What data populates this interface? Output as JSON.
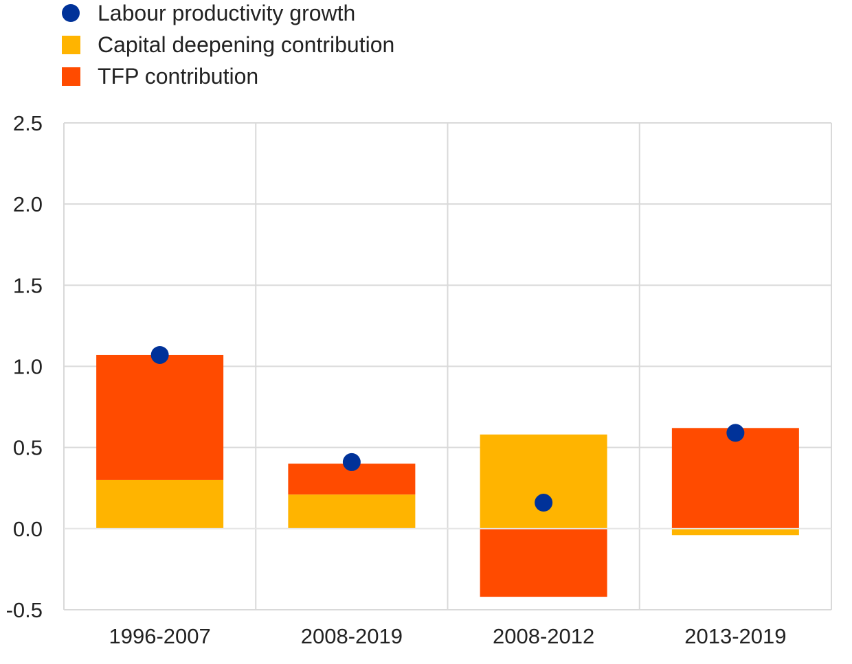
{
  "chart_data": {
    "type": "bar",
    "stacked": true,
    "title": "",
    "xlabel": "",
    "ylabel": "",
    "categories": [
      "1996-2007",
      "2008-2019",
      "2008-2012",
      "2013-2019"
    ],
    "series": [
      {
        "name": "Capital deepening contribution",
        "kind": "bar",
        "color": "#FFB400",
        "values": [
          0.3,
          0.21,
          0.58,
          -0.04
        ]
      },
      {
        "name": "TFP contribution",
        "kind": "bar",
        "color": "#FF4B00",
        "values": [
          0.77,
          0.19,
          -0.42,
          0.62
        ]
      },
      {
        "name": "Labour productivity growth",
        "kind": "dot",
        "color": "#003299",
        "values": [
          1.07,
          0.41,
          0.16,
          0.59
        ]
      }
    ],
    "legend_order": [
      "Labour productivity growth",
      "Capital deepening contribution",
      "TFP contribution"
    ],
    "ylim": [
      -0.5,
      2.5
    ],
    "yticks": [
      -0.5,
      0.0,
      0.5,
      1.0,
      1.5,
      2.0,
      2.5
    ],
    "ytick_labels": [
      "-0.5",
      "0.0",
      "0.5",
      "1.0",
      "1.5",
      "2.0",
      "2.5"
    ],
    "grid": true,
    "legend_position": "top-left"
  }
}
